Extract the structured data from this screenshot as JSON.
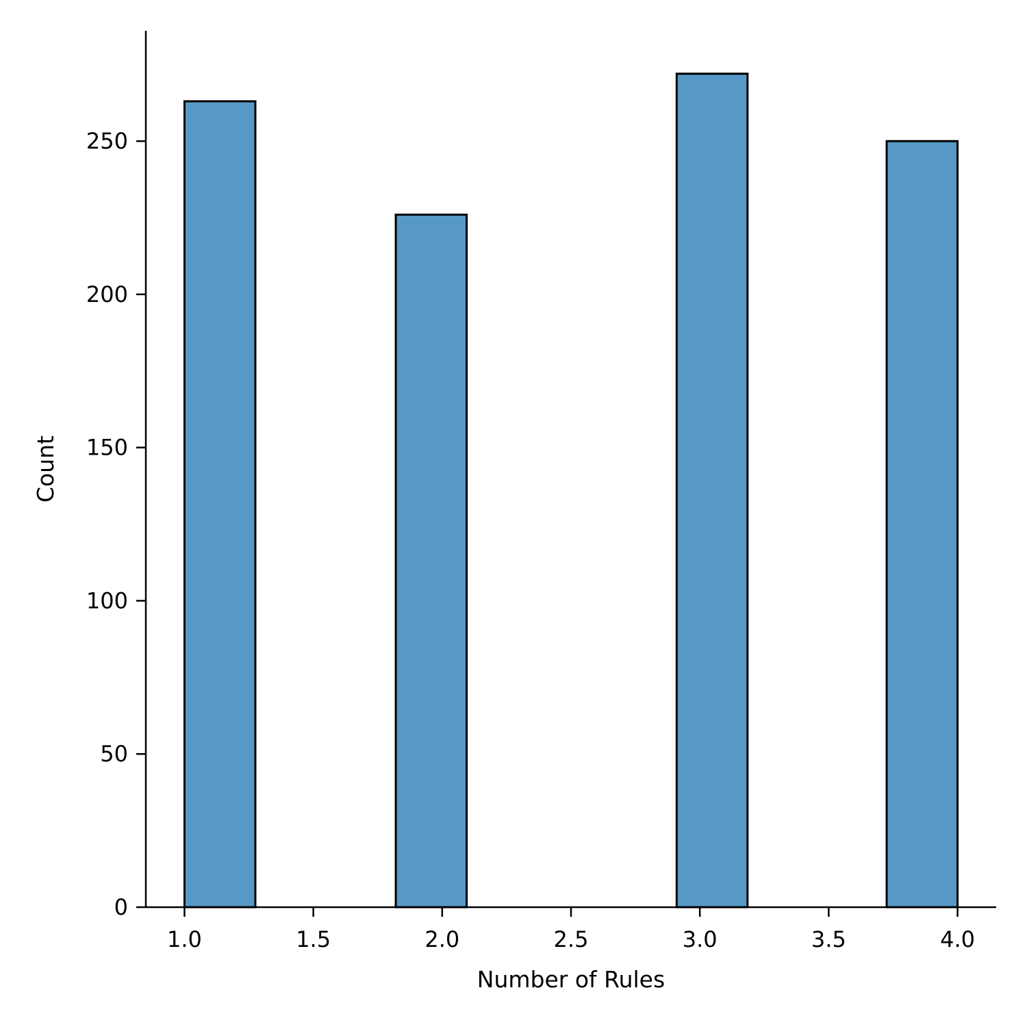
{
  "chart_data": {
    "type": "bar",
    "title": "",
    "xlabel": "Number of Rules",
    "ylabel": "Count",
    "xlim": [
      0.85,
      4.15
    ],
    "ylim": [
      0,
      286
    ],
    "grid": false,
    "bar_color": "#5799c6",
    "edge_color": "#000000",
    "bins": [
      {
        "x0": 1.0,
        "x1": 1.275,
        "count": 263
      },
      {
        "x0": 1.82,
        "x1": 2.095,
        "count": 226
      },
      {
        "x0": 2.91,
        "x1": 3.185,
        "count": 272
      },
      {
        "x0": 3.725,
        "x1": 4.0,
        "count": 250
      }
    ],
    "xticks": [
      1.0,
      1.5,
      2.0,
      2.5,
      3.0,
      3.5,
      4.0
    ],
    "xtick_labels": [
      "1.0",
      "1.5",
      "2.0",
      "2.5",
      "3.0",
      "3.5",
      "4.0"
    ],
    "yticks": [
      0,
      50,
      100,
      150,
      200,
      250
    ],
    "ytick_labels": [
      "0",
      "50",
      "100",
      "150",
      "200",
      "250"
    ]
  }
}
